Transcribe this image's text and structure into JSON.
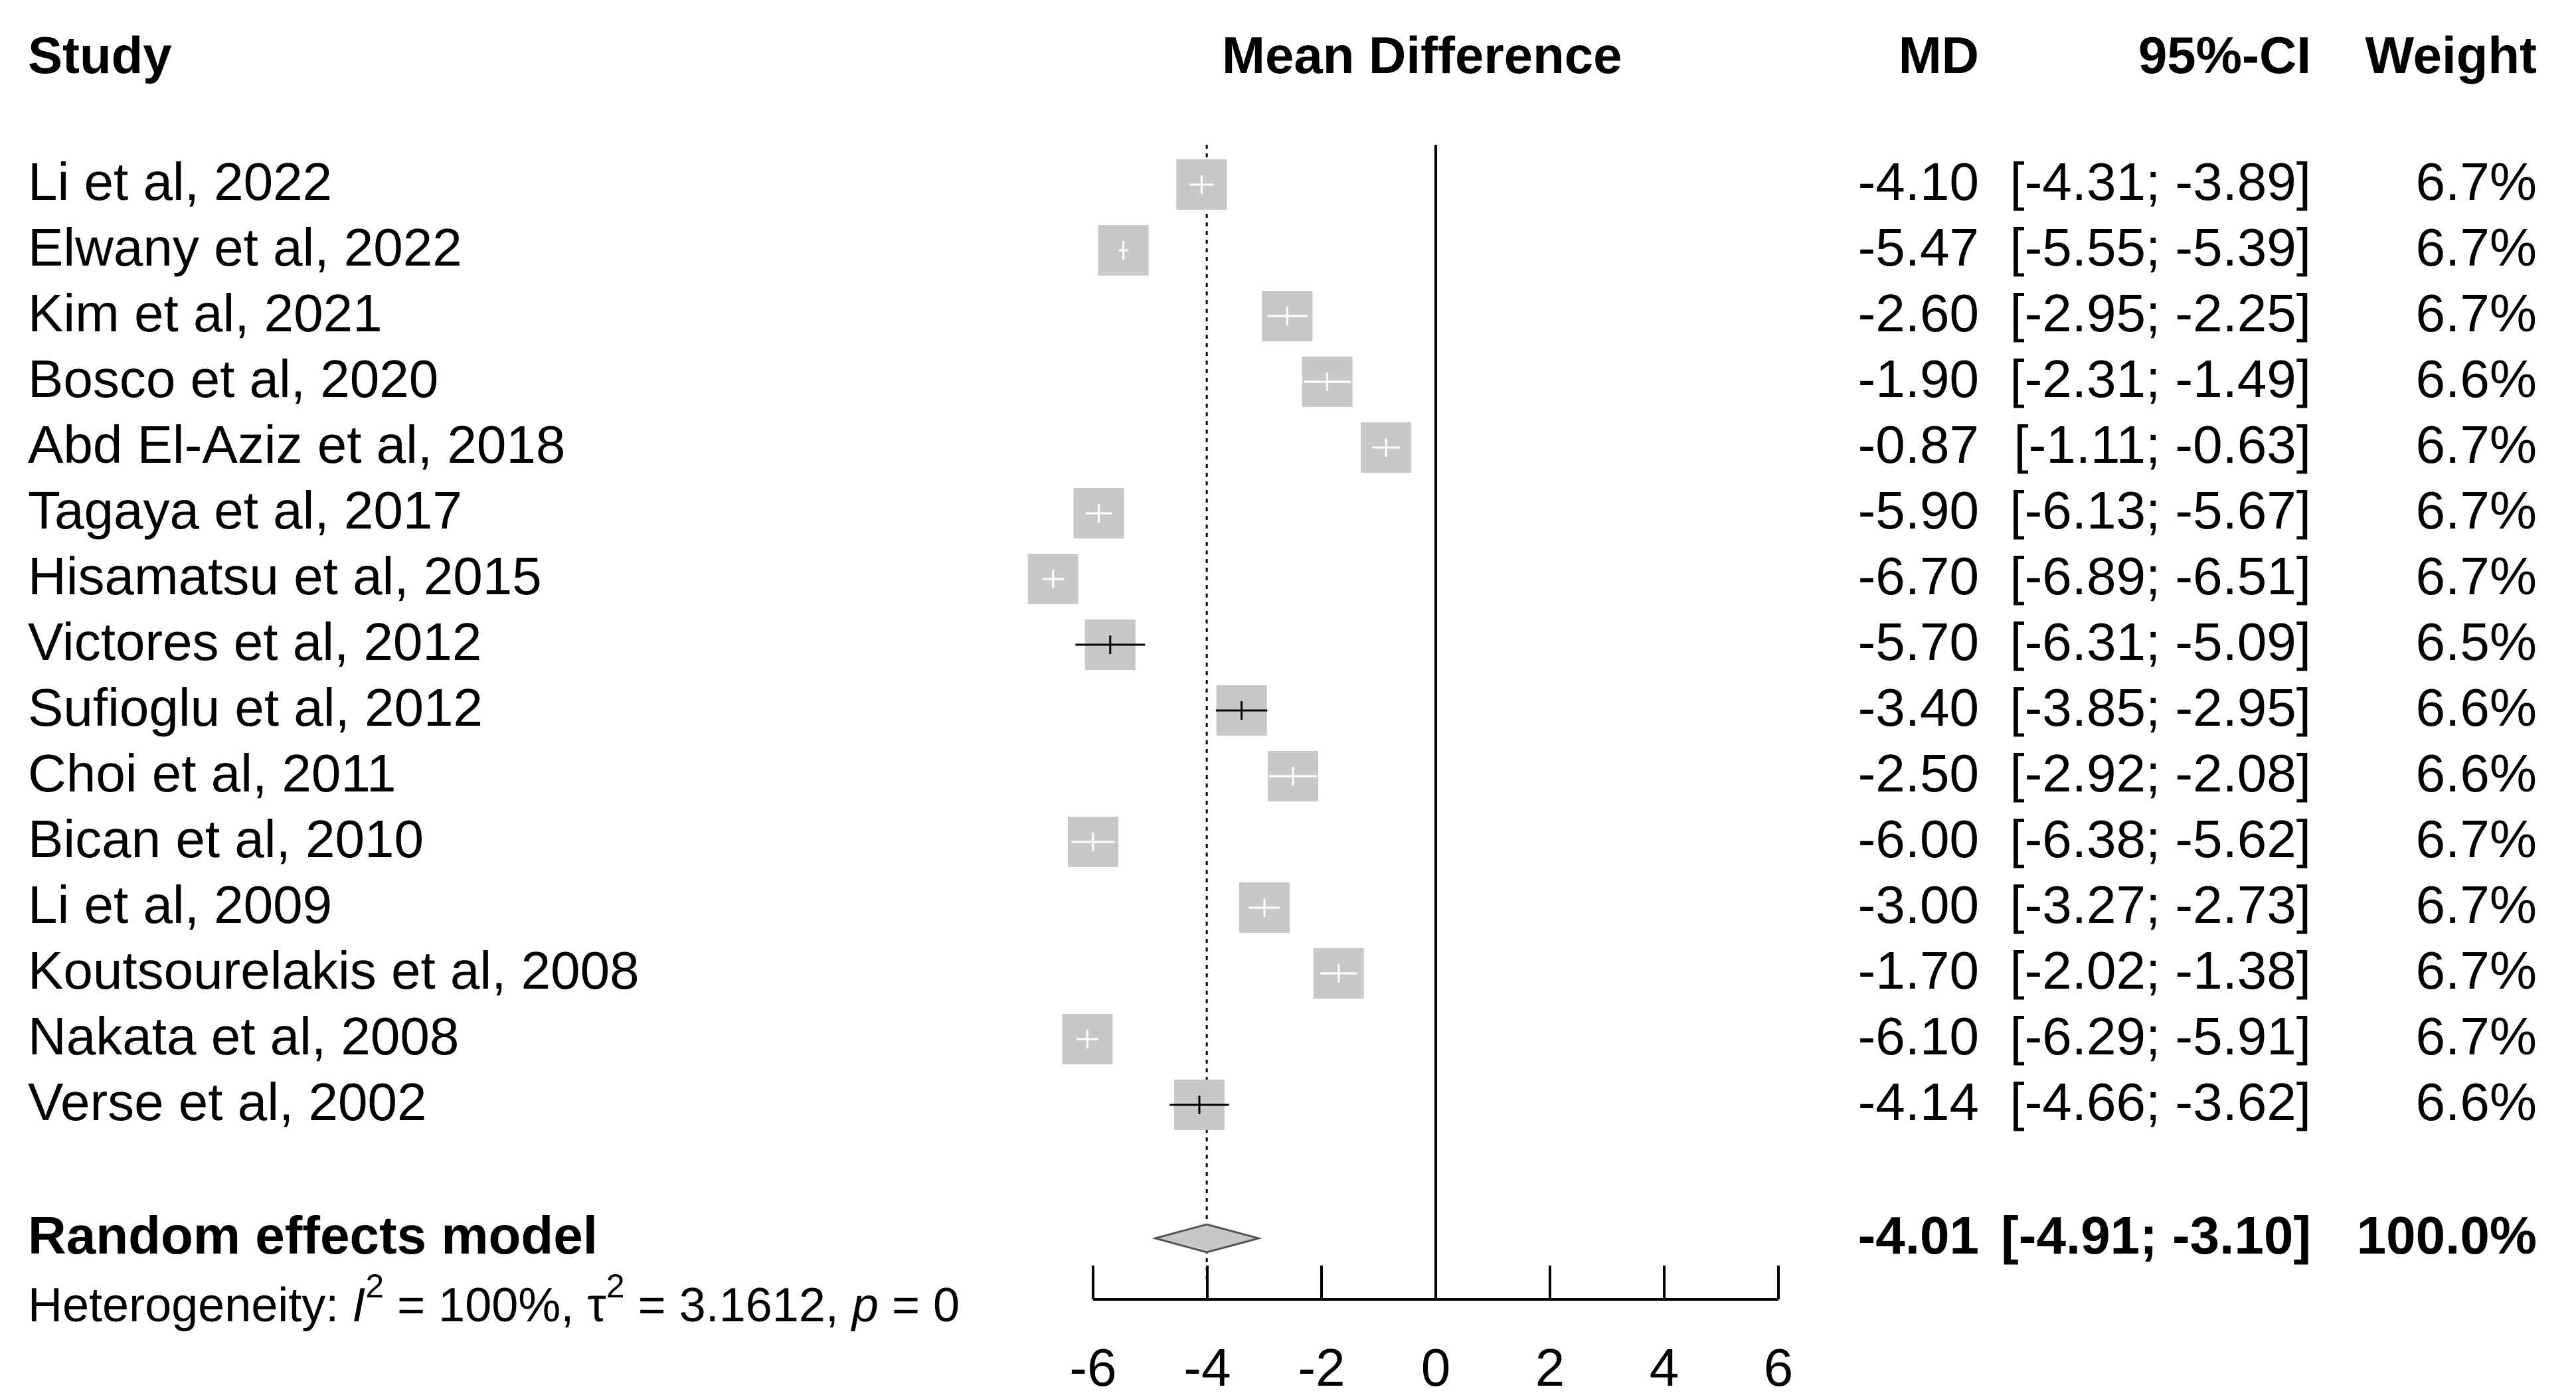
{
  "chart_data": {
    "type": "forest",
    "headers": {
      "study": "Study",
      "plot": "Mean Difference",
      "md": "MD",
      "ci": "95%-CI",
      "weight": "Weight"
    },
    "studies": [
      {
        "label": "Li et al, 2022",
        "md": -4.1,
        "lower": -4.31,
        "upper": -3.89,
        "md_text": "-4.10",
        "ci_text": "[-4.31; -3.89]",
        "weight_text": "6.7%"
      },
      {
        "label": "Elwany et al, 2022",
        "md": -5.47,
        "lower": -5.55,
        "upper": -5.39,
        "md_text": "-5.47",
        "ci_text": "[-5.55; -5.39]",
        "weight_text": "6.7%"
      },
      {
        "label": "Kim et al, 2021",
        "md": -2.6,
        "lower": -2.95,
        "upper": -2.25,
        "md_text": "-2.60",
        "ci_text": "[-2.95; -2.25]",
        "weight_text": "6.7%"
      },
      {
        "label": "Bosco et al, 2020",
        "md": -1.9,
        "lower": -2.31,
        "upper": -1.49,
        "md_text": "-1.90",
        "ci_text": "[-2.31; -1.49]",
        "weight_text": "6.6%"
      },
      {
        "label": "Abd El-Aziz et al, 2018",
        "md": -0.87,
        "lower": -1.11,
        "upper": -0.63,
        "md_text": "-0.87",
        "ci_text": "[-1.11; -0.63]",
        "weight_text": "6.7%"
      },
      {
        "label": "Tagaya et al, 2017",
        "md": -5.9,
        "lower": -6.13,
        "upper": -5.67,
        "md_text": "-5.90",
        "ci_text": "[-6.13; -5.67]",
        "weight_text": "6.7%"
      },
      {
        "label": "Hisamatsu et al, 2015",
        "md": -6.7,
        "lower": -6.89,
        "upper": -6.51,
        "md_text": "-6.70",
        "ci_text": "[-6.89; -6.51]",
        "weight_text": "6.7%"
      },
      {
        "label": "Victores et al, 2012",
        "md": -5.7,
        "lower": -6.31,
        "upper": -5.09,
        "md_text": "-5.70",
        "ci_text": "[-6.31; -5.09]",
        "weight_text": "6.5%"
      },
      {
        "label": "Sufioglu et al, 2012",
        "md": -3.4,
        "lower": -3.85,
        "upper": -2.95,
        "md_text": "-3.40",
        "ci_text": "[-3.85; -2.95]",
        "weight_text": "6.6%"
      },
      {
        "label": "Choi et al, 2011",
        "md": -2.5,
        "lower": -2.92,
        "upper": -2.08,
        "md_text": "-2.50",
        "ci_text": "[-2.92; -2.08]",
        "weight_text": "6.6%"
      },
      {
        "label": "Bican et al, 2010",
        "md": -6.0,
        "lower": -6.38,
        "upper": -5.62,
        "md_text": "-6.00",
        "ci_text": "[-6.38; -5.62]",
        "weight_text": "6.7%"
      },
      {
        "label": "Li et al, 2009",
        "md": -3.0,
        "lower": -3.27,
        "upper": -2.73,
        "md_text": "-3.00",
        "ci_text": "[-3.27; -2.73]",
        "weight_text": "6.7%"
      },
      {
        "label": "Koutsourelakis et al, 2008",
        "md": -1.7,
        "lower": -2.02,
        "upper": -1.38,
        "md_text": "-1.70",
        "ci_text": "[-2.02; -1.38]",
        "weight_text": "6.7%"
      },
      {
        "label": "Nakata et al, 2008",
        "md": -6.1,
        "lower": -6.29,
        "upper": -5.91,
        "md_text": "-6.10",
        "ci_text": "[-6.29; -5.91]",
        "weight_text": "6.7%"
      },
      {
        "label": "Verse et al, 2002",
        "md": -4.14,
        "lower": -4.66,
        "upper": -3.62,
        "md_text": "-4.14",
        "ci_text": "[-4.66; -3.62]",
        "weight_text": "6.6%"
      }
    ],
    "pooled": {
      "label": "Random effects model",
      "md": -4.01,
      "lower": -4.91,
      "upper": -3.1,
      "md_text": "-4.01",
      "ci_text": "[-4.91; -3.10]",
      "weight_text": "100.0%"
    },
    "heterogeneity": {
      "prefix": "Heterogeneity: ",
      "i2_symbol": "I",
      "i2_value": " = 100%, ",
      "tau_symbol": "τ",
      "tau_value": " = 3.1612, ",
      "p_symbol": "p",
      "p_value": " = 0",
      "superscript": "2"
    },
    "xlim": [
      -6,
      6
    ],
    "xticks": [
      -6,
      -4,
      -2,
      0,
      2,
      4,
      6
    ],
    "xtick_labels": [
      "-6",
      "-4",
      "-2",
      "0",
      "2",
      "4",
      "6"
    ],
    "null_line": 0,
    "pooled_reference_line": -4.01,
    "colors": {
      "box": "#c8c8c8",
      "diamond": "#c8c8c8",
      "ci_line_inside": "#ffffff",
      "ci_line_outside": "#000000",
      "text": "#000000"
    }
  }
}
